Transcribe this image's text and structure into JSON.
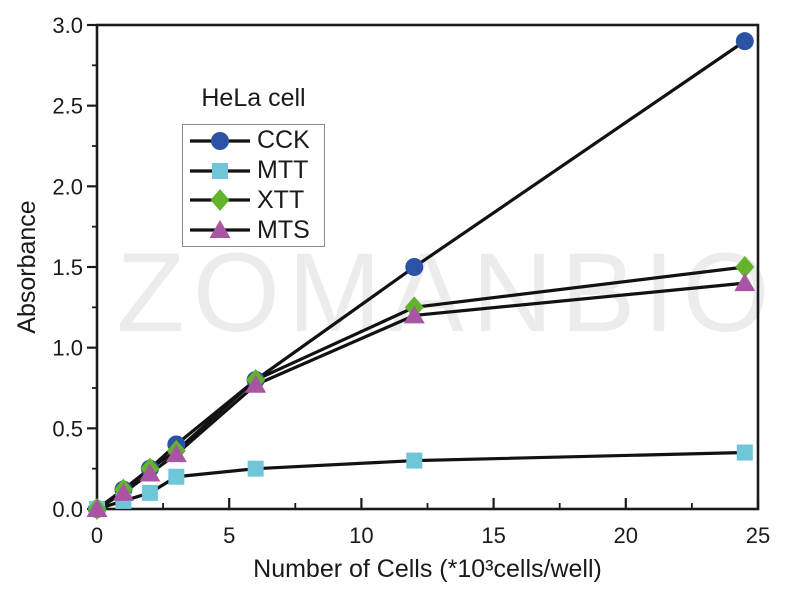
{
  "watermark": "ZOMANBIO",
  "watermark_color": "#ECECEC",
  "chart_data": {
    "type": "line",
    "legend_title": "HeLa cell",
    "xlabel": "Number of Cells (*10³cells/well)",
    "ylabel": "Absorbance",
    "xlim": [
      0,
      25
    ],
    "ylim": [
      0,
      3.0
    ],
    "grid": false,
    "legend_position": "upper-left-inside",
    "axis_color": "#1a1a1a",
    "line_color": "#121212",
    "text_color": "#1a1a1a",
    "x_major_ticks": [
      0,
      5,
      10,
      15,
      20,
      25
    ],
    "x_tick_labels": [
      "0",
      "5",
      "10",
      "15",
      "20",
      "25"
    ],
    "x_minor_step": 2.5,
    "y_major_ticks": [
      0,
      0.5,
      1.0,
      1.5,
      2.0,
      2.5,
      3.0
    ],
    "y_tick_labels": [
      "0.0",
      "0.5",
      "1.0",
      "1.5",
      "2.0",
      "2.5",
      "3.0"
    ],
    "y_minor_step": 0.25,
    "x": [
      0,
      1,
      2,
      3,
      6,
      12,
      24.5
    ],
    "series": [
      {
        "name": "CCK",
        "marker": "circle",
        "color": "#2B52A4",
        "values": [
          0,
          0.12,
          0.25,
          0.4,
          0.8,
          1.5,
          2.9
        ]
      },
      {
        "name": "MTT",
        "marker": "square",
        "color": "#6FC6D9",
        "values": [
          0,
          0.05,
          0.1,
          0.2,
          0.25,
          0.3,
          0.35
        ]
      },
      {
        "name": "XTT",
        "marker": "diamond",
        "color": "#63B32C",
        "values": [
          0,
          0.12,
          0.25,
          0.36,
          0.8,
          1.25,
          1.5
        ]
      },
      {
        "name": "MTS",
        "marker": "triangle",
        "color": "#A855A3",
        "values": [
          0,
          0.1,
          0.22,
          0.34,
          0.77,
          1.2,
          1.4
        ]
      }
    ]
  }
}
